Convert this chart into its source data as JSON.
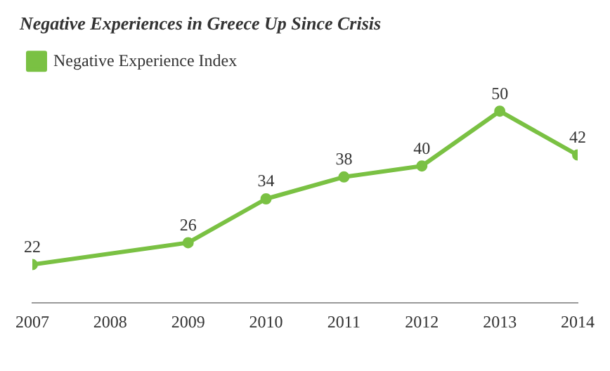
{
  "chart_data": {
    "type": "line",
    "title": "Negative Experiences in Greece Up Since Crisis",
    "x": [
      2007,
      2009,
      2010,
      2011,
      2012,
      2013,
      2014
    ],
    "series": [
      {
        "name": "Negative Experience Index",
        "color": "#7ac143",
        "values": [
          22,
          26,
          34,
          38,
          40,
          50,
          42
        ]
      }
    ],
    "xlim": [
      2007,
      2014
    ],
    "xticks": [
      2007,
      2008,
      2009,
      2010,
      2011,
      2012,
      2013,
      2014
    ],
    "data_labels": true,
    "legend": "top left",
    "marker": "circle",
    "grid": false
  }
}
